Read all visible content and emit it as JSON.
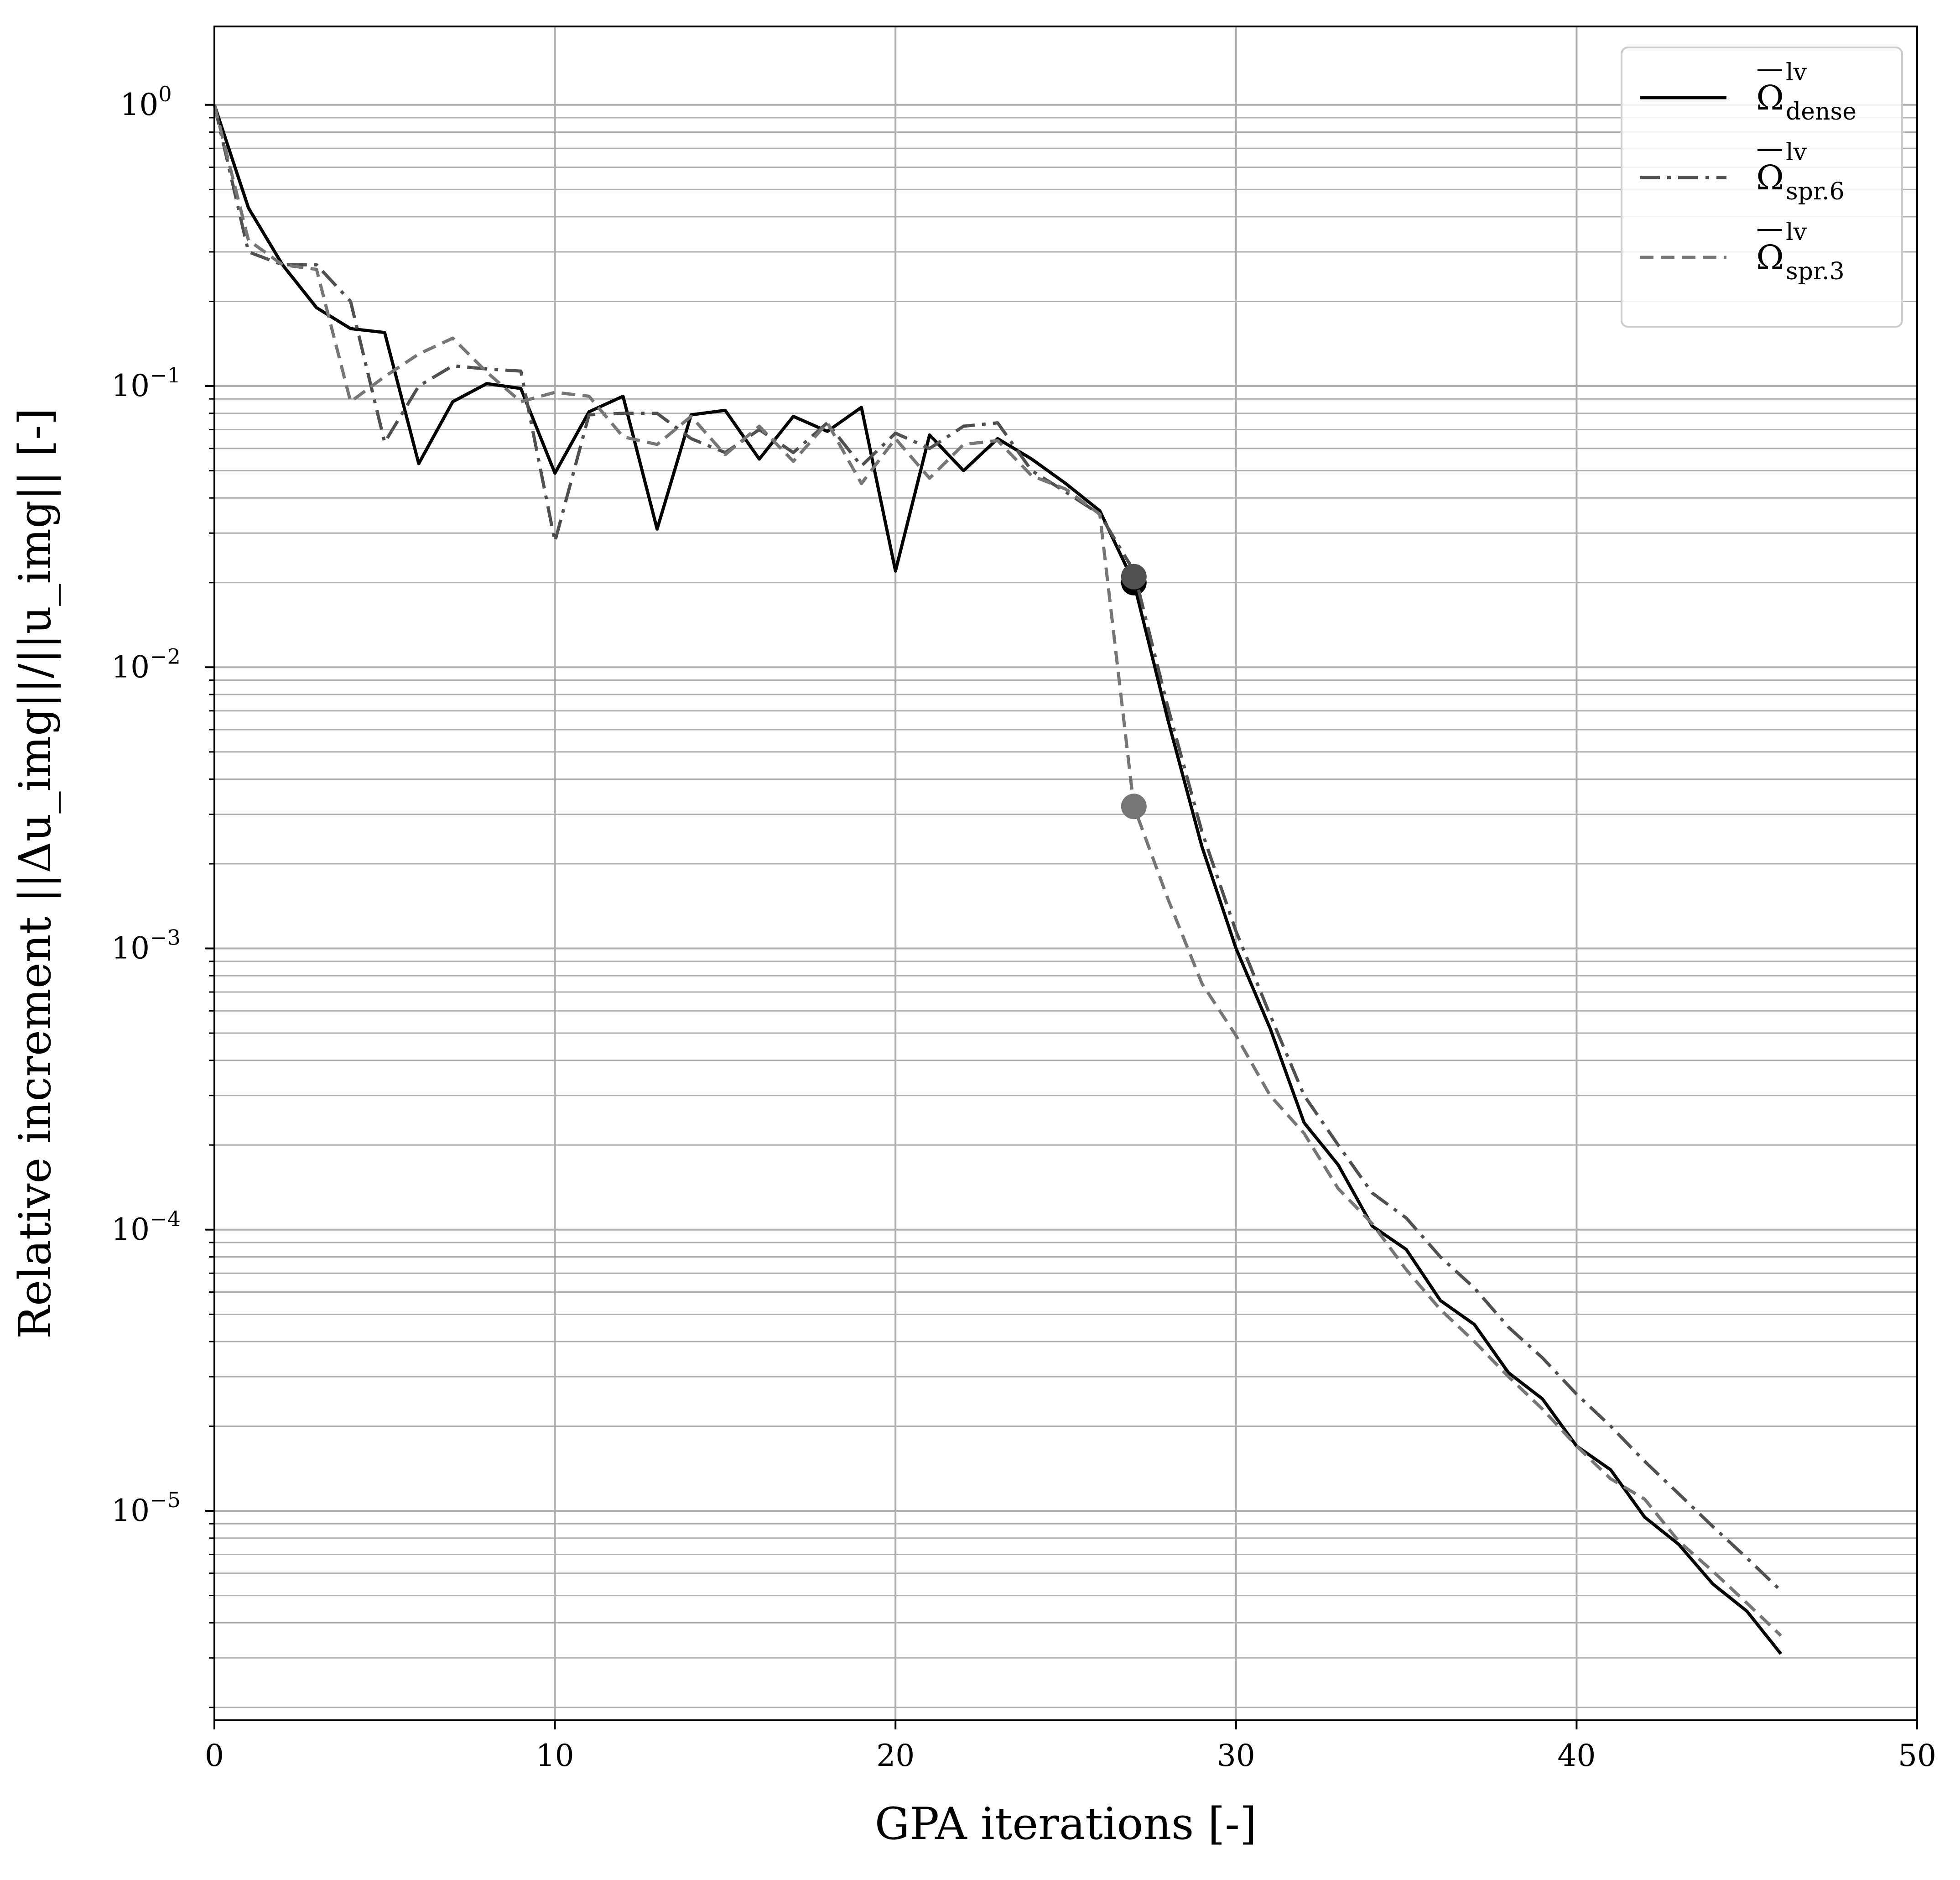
{
  "chart_data": {
    "type": "line",
    "xlabel": "GPA iterations [-]",
    "ylabel": "Relative increment ||Δu_img||/||u_img|| [-]",
    "xlim": [
      0,
      50
    ],
    "ylim": [
      1.8e-06,
      1.9
    ],
    "yscale": "log",
    "grid": true,
    "legend_position": "top-right",
    "x_ticks": [
      0,
      10,
      20,
      30,
      40,
      50
    ],
    "x_tick_labels": [
      "0",
      "10",
      "20",
      "30",
      "40",
      "50"
    ],
    "y_ticks": [
      1,
      0.1,
      0.01,
      0.001,
      0.0001,
      1e-05
    ],
    "y_tick_labels": [
      {
        "base": "10",
        "exp": "0"
      },
      {
        "base": "10",
        "exp": "−1"
      },
      {
        "base": "10",
        "exp": "−2"
      },
      {
        "base": "10",
        "exp": "−3"
      },
      {
        "base": "10",
        "exp": "−4"
      },
      {
        "base": "10",
        "exp": "−5"
      }
    ],
    "series": [
      {
        "name": "Ω lv dense",
        "label_main": "Ω",
        "label_sup": "lv",
        "label_sub": "dense",
        "color": "#000000",
        "dash": "solid",
        "x": [
          0,
          1,
          2,
          3,
          4,
          5,
          6,
          7,
          8,
          9,
          10,
          11,
          12,
          13,
          14,
          15,
          16,
          17,
          18,
          19,
          20,
          21,
          22,
          23,
          24,
          25,
          26,
          27,
          28,
          29,
          30,
          31,
          32,
          33,
          34,
          35,
          36,
          37,
          38,
          39,
          40,
          41,
          42,
          43,
          44,
          45,
          46
        ],
        "y": [
          1.0,
          0.43,
          0.27,
          0.19,
          0.16,
          0.155,
          0.053,
          0.088,
          0.102,
          0.098,
          0.049,
          0.081,
          0.092,
          0.031,
          0.079,
          0.082,
          0.055,
          0.078,
          0.069,
          0.084,
          0.022,
          0.067,
          0.05,
          0.065,
          0.055,
          0.045,
          0.036,
          0.02,
          0.0065,
          0.0023,
          0.001,
          0.00052,
          0.00024,
          0.00017,
          0.000103,
          8.5e-05,
          5.6e-05,
          4.6e-05,
          3.1e-05,
          2.5e-05,
          1.7e-05,
          1.4e-05,
          9.5e-06,
          7.6e-06,
          5.5e-06,
          4.4e-06,
          3.1e-06
        ],
        "marker": {
          "x": 27,
          "y": 0.02
        }
      },
      {
        "name": "Ω lv spr.6",
        "label_main": "Ω",
        "label_sup": "lv",
        "label_sub": "spr.6",
        "color": "#505050",
        "dash": "dashdot",
        "x": [
          0,
          1,
          2,
          3,
          4,
          5,
          6,
          7,
          8,
          9,
          10,
          11,
          12,
          13,
          14,
          15,
          16,
          17,
          18,
          19,
          20,
          21,
          22,
          23,
          24,
          25,
          26,
          27,
          28,
          29,
          30,
          31,
          32,
          33,
          34,
          35,
          36,
          37,
          38,
          39,
          40,
          41,
          42,
          43,
          44,
          45,
          46
        ],
        "y": [
          1.0,
          0.3,
          0.27,
          0.27,
          0.2,
          0.063,
          0.1,
          0.118,
          0.115,
          0.113,
          0.028,
          0.079,
          0.08,
          0.08,
          0.065,
          0.058,
          0.07,
          0.058,
          0.074,
          0.052,
          0.068,
          0.06,
          0.072,
          0.074,
          0.05,
          0.042,
          0.035,
          0.022,
          0.0072,
          0.0026,
          0.00115,
          0.00058,
          0.0003,
          0.0002,
          0.000135,
          0.00011,
          8e-05,
          6.2e-05,
          4.5e-05,
          3.5e-05,
          2.6e-05,
          2e-05,
          1.5e-05,
          1.15e-05,
          8.8e-06,
          6.8e-06,
          5.2e-06
        ],
        "marker": {
          "x": 27,
          "y": 0.021
        }
      },
      {
        "name": "Ω lv spr.3",
        "label_main": "Ω",
        "label_sup": "lv",
        "label_sub": "spr.3",
        "color": "#767676",
        "dash": "dashed",
        "x": [
          0,
          1,
          2,
          3,
          4,
          5,
          6,
          7,
          8,
          9,
          10,
          11,
          12,
          13,
          14,
          15,
          16,
          17,
          18,
          19,
          20,
          21,
          22,
          23,
          24,
          25,
          26,
          27,
          28,
          29,
          30,
          31,
          32,
          33,
          34,
          35,
          36,
          37,
          38,
          39,
          40,
          41,
          42,
          43,
          44,
          45,
          46
        ],
        "y": [
          1.0,
          0.33,
          0.27,
          0.26,
          0.088,
          0.108,
          0.13,
          0.148,
          0.112,
          0.088,
          0.095,
          0.092,
          0.066,
          0.062,
          0.078,
          0.057,
          0.072,
          0.054,
          0.074,
          0.045,
          0.065,
          0.047,
          0.062,
          0.064,
          0.048,
          0.043,
          0.035,
          0.0032,
          0.0015,
          0.00075,
          0.00049,
          0.0003,
          0.00022,
          0.00014,
          0.000105,
          7.2e-05,
          5.2e-05,
          4e-05,
          3e-05,
          2.3e-05,
          1.7e-05,
          1.3e-05,
          1.1e-05,
          7.8e-06,
          6.1e-06,
          4.7e-06,
          3.6e-06
        ],
        "marker": {
          "x": 27,
          "y": 0.0032
        }
      }
    ]
  }
}
